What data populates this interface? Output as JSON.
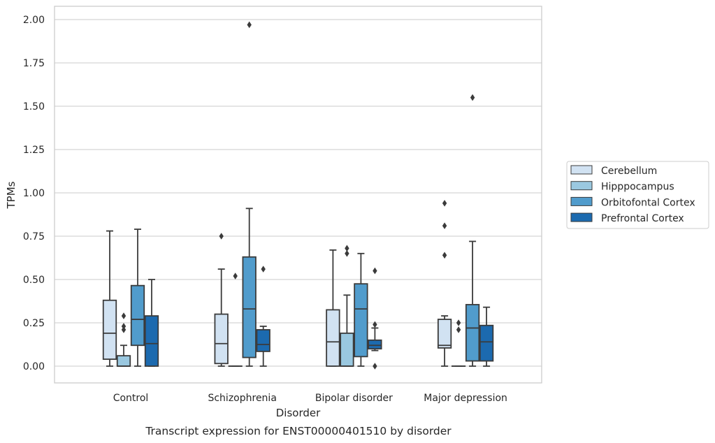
{
  "chart_data": {
    "type": "box",
    "xlabel": "Disorder",
    "ylabel": "TPMs",
    "caption": "Transcript expression for ENST00000401510 by disorder",
    "ylim": [
      -0.1,
      2.07
    ],
    "yticks": [
      "0.00",
      "0.25",
      "0.50",
      "0.75",
      "1.00",
      "1.25",
      "1.50",
      "1.75",
      "2.00"
    ],
    "ytick_values": [
      0,
      0.25,
      0.5,
      0.75,
      1.0,
      1.25,
      1.5,
      1.75,
      2.0
    ],
    "grid": "horizontal",
    "legend_position": "right",
    "categories": [
      "Control",
      "Schizophrenia",
      "Bipolar disorder",
      "Major depression"
    ],
    "series": [
      {
        "name": "Cerebellum",
        "color": "#d1e2f2",
        "boxes": [
          {
            "whislo": 0.0,
            "q1": 0.04,
            "med": 0.19,
            "q3": 0.38,
            "whishi": 0.78,
            "fliers": []
          },
          {
            "whislo": 0.0,
            "q1": 0.015,
            "med": 0.13,
            "q3": 0.3,
            "whishi": 0.56,
            "fliers": [
              0.75
            ]
          },
          {
            "whislo": 0.0,
            "q1": 0.0,
            "med": 0.14,
            "q3": 0.325,
            "whishi": 0.67,
            "fliers": []
          },
          {
            "whislo": 0.0,
            "q1": 0.105,
            "med": 0.12,
            "q3": 0.27,
            "whishi": 0.29,
            "fliers": [
              0.64,
              0.81,
              0.94
            ]
          }
        ]
      },
      {
        "name": "Hipppocampus",
        "color": "#9ac8e0",
        "boxes": [
          {
            "whislo": 0.0,
            "q1": 0.0,
            "med": 0.0,
            "q3": 0.06,
            "whishi": 0.12,
            "fliers": [
              0.21,
              0.23,
              0.29
            ]
          },
          {
            "whislo": 0.0,
            "q1": 0.0,
            "med": 0.0,
            "q3": 0.0,
            "whishi": 0.0,
            "fliers": [
              0.52
            ]
          },
          {
            "whislo": 0.0,
            "q1": 0.0,
            "med": 0.0,
            "q3": 0.19,
            "whishi": 0.41,
            "fliers": [
              0.65,
              0.68
            ]
          },
          {
            "whislo": 0.0,
            "q1": 0.0,
            "med": 0.0,
            "q3": 0.0,
            "whishi": 0.0,
            "fliers": [
              0.21,
              0.25
            ]
          }
        ]
      },
      {
        "name": "Orbitofontal Cortex",
        "color": "#519ccc",
        "boxes": [
          {
            "whislo": 0.0,
            "q1": 0.12,
            "med": 0.27,
            "q3": 0.465,
            "whishi": 0.79,
            "fliers": []
          },
          {
            "whislo": 0.0,
            "q1": 0.05,
            "med": 0.33,
            "q3": 0.63,
            "whishi": 0.91,
            "fliers": [
              1.97
            ]
          },
          {
            "whislo": 0.0,
            "q1": 0.055,
            "med": 0.33,
            "q3": 0.475,
            "whishi": 0.65,
            "fliers": []
          },
          {
            "whislo": 0.0,
            "q1": 0.03,
            "med": 0.22,
            "q3": 0.355,
            "whishi": 0.72,
            "fliers": [
              1.55
            ]
          }
        ]
      },
      {
        "name": "Prefrontal Cortex",
        "color": "#1c6aaf",
        "boxes": [
          {
            "whislo": 0.0,
            "q1": 0.0,
            "med": 0.13,
            "q3": 0.29,
            "whishi": 0.5,
            "fliers": []
          },
          {
            "whislo": 0.0,
            "q1": 0.085,
            "med": 0.125,
            "q3": 0.21,
            "whishi": 0.23,
            "fliers": [
              0.56
            ]
          },
          {
            "whislo": 0.09,
            "q1": 0.1,
            "med": 0.12,
            "q3": 0.15,
            "whishi": 0.22,
            "fliers": [
              0.0,
              0.24,
              0.55
            ]
          },
          {
            "whislo": 0.0,
            "q1": 0.03,
            "med": 0.14,
            "q3": 0.235,
            "whishi": 0.34,
            "fliers": []
          }
        ]
      }
    ]
  }
}
